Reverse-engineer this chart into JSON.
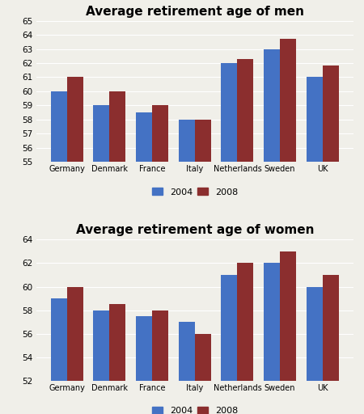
{
  "countries": [
    "Germany",
    "Denmark",
    "France",
    "Italy",
    "Netherlands",
    "Sweden",
    "UK"
  ],
  "men": {
    "title": "Average retirement age of men",
    "values_2004": [
      60.0,
      59.0,
      58.5,
      58.0,
      62.0,
      63.0,
      61.0
    ],
    "values_2008": [
      61.0,
      60.0,
      59.0,
      58.0,
      62.3,
      63.7,
      61.8
    ],
    "ylim": [
      55,
      65
    ],
    "yticks": [
      55,
      56,
      57,
      58,
      59,
      60,
      61,
      62,
      63,
      64,
      65
    ]
  },
  "women": {
    "title": "Average retirement age of women",
    "values_2004": [
      59.0,
      58.0,
      57.5,
      57.0,
      61.0,
      62.0,
      60.0
    ],
    "values_2008": [
      60.0,
      58.5,
      58.0,
      56.0,
      62.0,
      63.0,
      61.0
    ],
    "ylim": [
      52,
      64
    ],
    "yticks": [
      52,
      54,
      56,
      58,
      60,
      62,
      64
    ]
  },
  "color_2004": "#4472C4",
  "color_2008": "#8B2E2E",
  "legend_labels": [
    "2004",
    "2008"
  ],
  "background_color": "#F0EFE9",
  "plot_bg_color": "#F0EFE9",
  "bar_width": 0.38,
  "title_fontsize": 11
}
